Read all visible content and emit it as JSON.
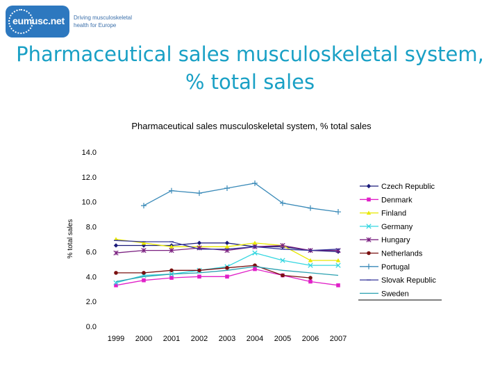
{
  "logo": {
    "name": "eumusc.net",
    "tagline": "Driving musculoskeletal health for Europe"
  },
  "slide_title": "Pharmaceutical sales musculoskeletal system, % total sales",
  "chart_data": {
    "type": "line",
    "title": "Pharmaceutical sales musculoskeletal system, % total sales",
    "xlabel": "",
    "ylabel": "% total sales",
    "categories": [
      "1999",
      "2000",
      "2001",
      "2002",
      "2003",
      "2004",
      "2005",
      "2006",
      "2007"
    ],
    "ylim": [
      0,
      14
    ],
    "yticks": [
      "0.0",
      "2.0",
      "4.0",
      "6.0",
      "8.0",
      "10.0",
      "12.0",
      "14.0"
    ],
    "grid": false,
    "legend_position": "right",
    "series": [
      {
        "name": "Czech Republic",
        "color": "#1a1a7a",
        "marker": "diamond",
        "values": [
          6.5,
          6.5,
          6.5,
          6.7,
          6.7,
          6.4,
          6.4,
          6.1,
          6.0
        ]
      },
      {
        "name": "Denmark",
        "color": "#e020c8",
        "marker": "square",
        "values": [
          3.3,
          3.7,
          3.9,
          4.0,
          4.0,
          4.6,
          4.1,
          3.6,
          3.3
        ]
      },
      {
        "name": "Finland",
        "color": "#e8e800",
        "marker": "triangle",
        "values": [
          7.0,
          6.7,
          6.4,
          6.4,
          6.4,
          6.7,
          6.5,
          5.3,
          5.3
        ]
      },
      {
        "name": "Germany",
        "color": "#33d6e0",
        "marker": "x",
        "values": [
          3.5,
          4.1,
          4.2,
          4.5,
          4.8,
          5.9,
          5.3,
          4.9,
          4.9
        ]
      },
      {
        "name": "Hungary",
        "color": "#7a2080",
        "marker": "star",
        "values": [
          5.9,
          6.1,
          6.1,
          6.3,
          6.1,
          6.4,
          6.5,
          6.1,
          6.1
        ]
      },
      {
        "name": "Netherlands",
        "color": "#7a1010",
        "marker": "circle",
        "values": [
          4.3,
          4.3,
          4.5,
          4.5,
          4.7,
          4.9,
          4.1,
          3.9,
          null
        ]
      },
      {
        "name": "Portugal",
        "color": "#3a8ab8",
        "marker": "plus",
        "values": [
          null,
          9.7,
          10.9,
          10.7,
          11.1,
          11.5,
          9.9,
          9.5,
          9.2
        ]
      },
      {
        "name": "Slovak Republic",
        "color": "#333399",
        "marker": "dash",
        "values": [
          6.9,
          6.8,
          6.8,
          6.2,
          6.2,
          6.4,
          6.2,
          6.1,
          6.2
        ]
      },
      {
        "name": "Sweden",
        "color": "#2aa0b0",
        "marker": "none",
        "values": [
          3.6,
          4.0,
          4.2,
          4.3,
          4.5,
          4.8,
          4.5,
          4.3,
          4.1
        ]
      }
    ]
  }
}
